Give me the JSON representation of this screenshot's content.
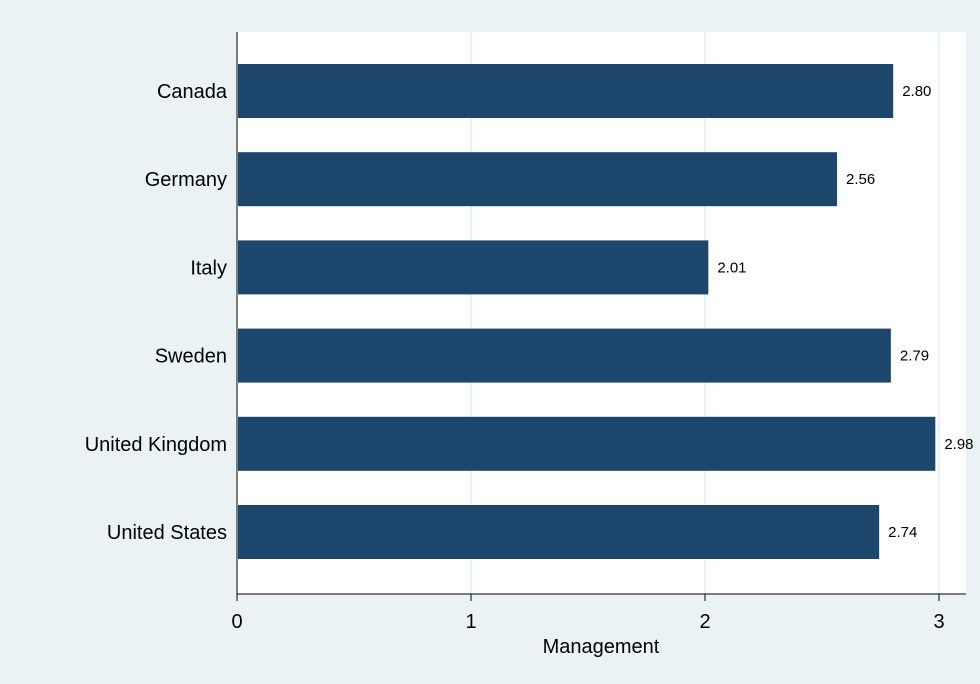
{
  "chart_data": {
    "type": "bar",
    "orientation": "horizontal",
    "categories": [
      "Canada",
      "Germany",
      "Italy",
      "Sweden",
      "United Kingdom",
      "United States"
    ],
    "values": [
      2.8,
      2.56,
      2.01,
      2.79,
      2.98,
      2.74
    ],
    "value_labels": [
      "2.80",
      "2.56",
      "2.01",
      "2.79",
      "2.98",
      "2.74"
    ],
    "xlabel": "Management",
    "ylabel": "",
    "xlim": [
      0,
      3.1
    ],
    "xticks": [
      0,
      1,
      2,
      3
    ],
    "xtick_labels": [
      "0",
      "1",
      "2",
      "3"
    ],
    "grid": true,
    "colors": {
      "bar": "#1c466b",
      "plot_background": "#ffffff",
      "outer_background": "#eaf2f3",
      "gridline": "#e3eef0",
      "axis": "#000000"
    }
  }
}
